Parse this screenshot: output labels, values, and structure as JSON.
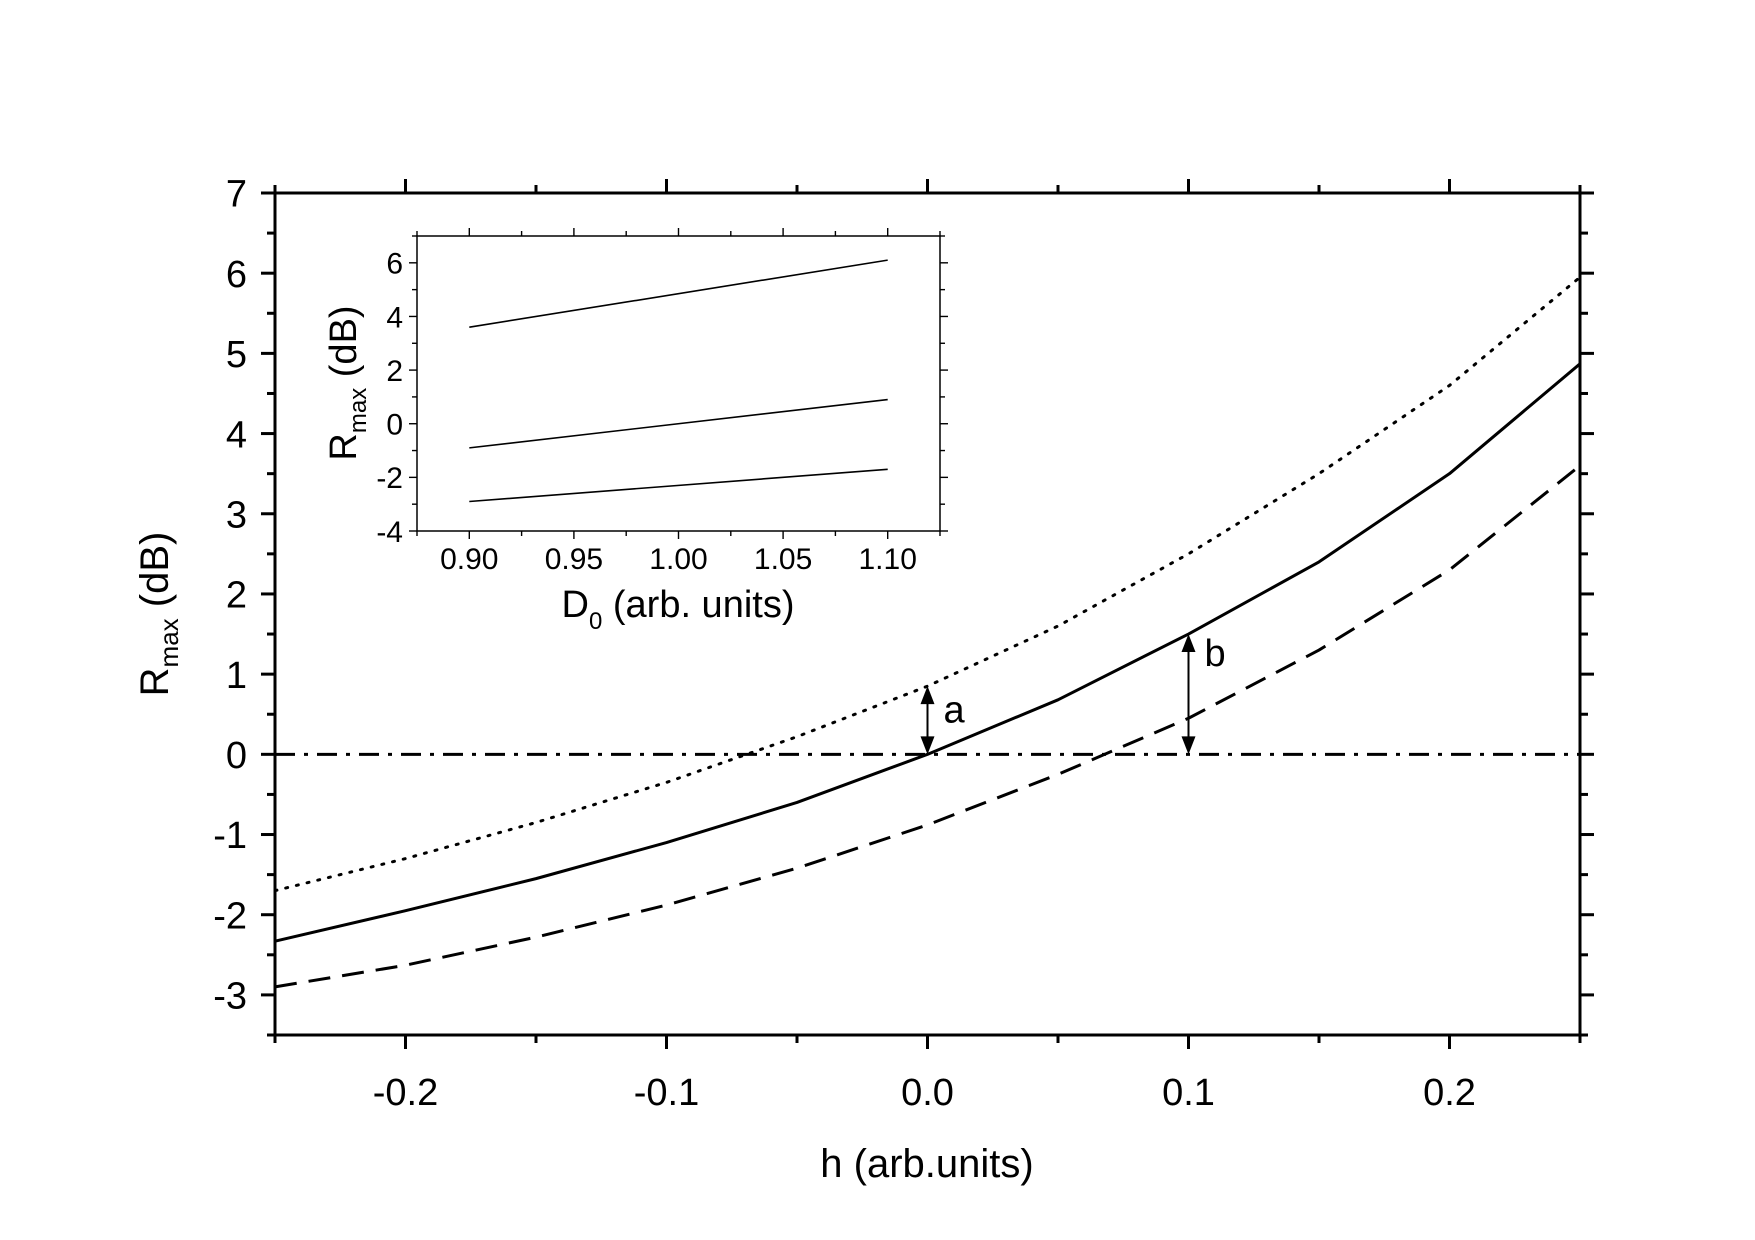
{
  "chart_data": [
    {
      "type": "line",
      "role": "main",
      "xlabel": "h (arb.units)",
      "ylabel": {
        "base": "R",
        "sub": "max",
        "rest": " (dB)"
      },
      "xlim": [
        -0.25,
        0.25
      ],
      "ylim": [
        -3.5,
        7
      ],
      "x_ticks": [
        -0.2,
        -0.1,
        0.0,
        0.1,
        0.2
      ],
      "x_tick_labels": [
        "-0.2",
        "-0.1",
        "0.0",
        "0.1",
        "0.2"
      ],
      "y_ticks": [
        -3,
        -2,
        -1,
        0,
        1,
        2,
        3,
        4,
        5,
        6,
        7
      ],
      "y_tick_labels": [
        "-3",
        "-2",
        "-1",
        "0",
        "1",
        "2",
        "3",
        "4",
        "5",
        "6",
        "7"
      ],
      "series": [
        {
          "style": "solid",
          "x": [
            -0.25,
            -0.2,
            -0.15,
            -0.1,
            -0.05,
            0.0,
            0.05,
            0.1,
            0.15,
            0.2,
            0.25
          ],
          "y": [
            -2.33,
            -1.95,
            -1.55,
            -1.1,
            -0.6,
            0.0,
            0.68,
            1.5,
            2.4,
            3.5,
            4.87
          ]
        },
        {
          "style": "dotted",
          "x": [
            -0.25,
            -0.2,
            -0.15,
            -0.1,
            -0.05,
            0.0,
            0.05,
            0.1,
            0.15,
            0.2,
            0.25
          ],
          "y": [
            -1.7,
            -1.3,
            -0.85,
            -0.35,
            0.22,
            0.85,
            1.6,
            2.5,
            3.5,
            4.6,
            5.95
          ]
        },
        {
          "style": "dashed",
          "x": [
            -0.25,
            -0.2,
            -0.15,
            -0.1,
            -0.05,
            0.0,
            0.05,
            0.1,
            0.15,
            0.2,
            0.25
          ],
          "y": [
            -2.9,
            -2.63,
            -2.28,
            -1.88,
            -1.42,
            -0.88,
            -0.25,
            0.45,
            1.3,
            2.3,
            3.6
          ]
        },
        {
          "style": "dashdot",
          "x": [
            -0.25,
            0.25
          ],
          "y": [
            0,
            0
          ]
        }
      ],
      "annotations": [
        {
          "label": "a",
          "x": 0.0,
          "y_from": 0.0,
          "y_to": 0.85
        },
        {
          "label": "b",
          "x": 0.1,
          "y_from": 0.0,
          "y_to": 1.5
        }
      ]
    },
    {
      "type": "line",
      "role": "inset",
      "xlabel": {
        "base": "D",
        "sub": "0",
        "rest": " (arb. units)"
      },
      "ylabel": {
        "base": "R",
        "sub": "max",
        "rest": " (dB)"
      },
      "xlim": [
        0.875,
        1.125
      ],
      "ylim": [
        -4,
        7
      ],
      "x_ticks": [
        0.9,
        0.95,
        1.0,
        1.05,
        1.1
      ],
      "x_tick_labels": [
        "0.90",
        "0.95",
        "1.00",
        "1.05",
        "1.10"
      ],
      "y_ticks": [
        -4,
        -2,
        0,
        2,
        4,
        6
      ],
      "y_tick_labels": [
        "-4",
        "-2",
        "0",
        "2",
        "4",
        "6"
      ],
      "series": [
        {
          "style": "solid",
          "x": [
            0.9,
            1.1
          ],
          "y": [
            3.6,
            6.1
          ]
        },
        {
          "style": "solid",
          "x": [
            0.9,
            1.1
          ],
          "y": [
            -0.9,
            0.9
          ]
        },
        {
          "style": "solid",
          "x": [
            0.9,
            1.1
          ],
          "y": [
            -2.9,
            -1.7
          ]
        }
      ]
    }
  ]
}
